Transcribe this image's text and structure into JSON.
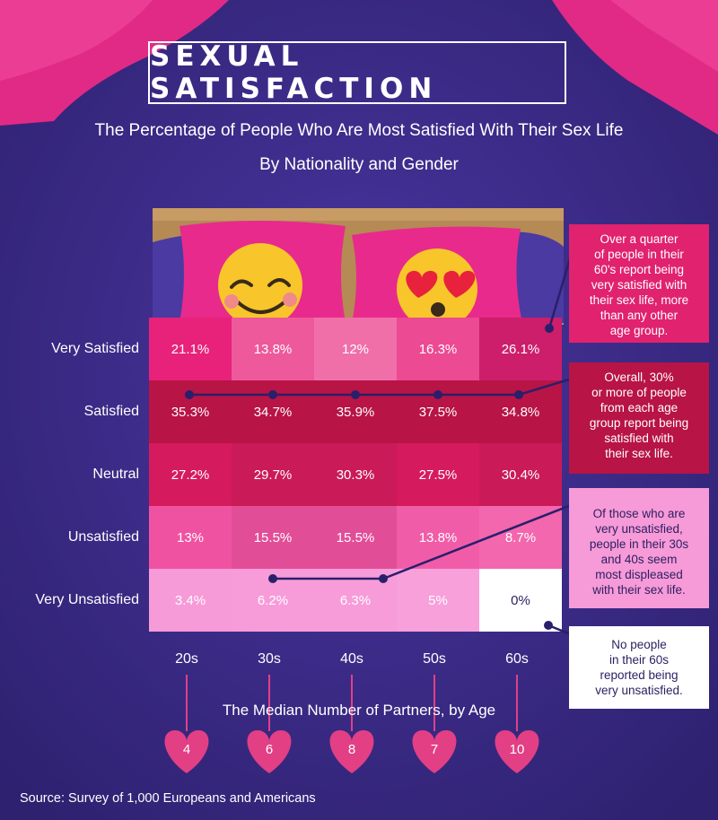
{
  "title": "SEXUAL SATISFACTION",
  "subtitle_line1": "The Percentage of People Who Are Most Satisfied With Their Sex Life",
  "subtitle_line2": "By Nationality and Gender",
  "colors": {
    "background": "#3a2a86",
    "very_satisfied": "#e8227a",
    "satisfied": "#b81446",
    "neutral": "#d51b5d",
    "unsatisfied": "#f052a2",
    "very_unsatisfied": "#f79ad8",
    "zero_cell": "#ffffff",
    "heart": "#e23f85"
  },
  "chart_data": {
    "type": "heatmap",
    "title": "The Percentage of People Who Are Most Satisfied With Their Sex Life",
    "subtitle": "By Nationality and Gender",
    "columns": [
      "20s",
      "30s",
      "40s",
      "50s",
      "60s"
    ],
    "rows": [
      {
        "label": "Very Satisfied",
        "values": [
          21.1,
          13.8,
          12,
          16.3,
          26.1
        ],
        "display": [
          "21.1%",
          "13.8%",
          "12%",
          "16.3%",
          "26.1%"
        ]
      },
      {
        "label": "Satisfied",
        "values": [
          35.3,
          34.7,
          35.9,
          37.5,
          34.8
        ],
        "display": [
          "35.3%",
          "34.7%",
          "35.9%",
          "37.5%",
          "34.8%"
        ]
      },
      {
        "label": "Neutral",
        "values": [
          27.2,
          29.7,
          30.3,
          27.5,
          30.4
        ],
        "display": [
          "27.2%",
          "29.7%",
          "30.3%",
          "27.5%",
          "30.4%"
        ]
      },
      {
        "label": "Unsatisfied",
        "values": [
          13,
          15.5,
          15.5,
          13.8,
          8.7
        ],
        "display": [
          "13%",
          "15.5%",
          "15.5%",
          "13.8%",
          "8.7%"
        ]
      },
      {
        "label": "Very Unsatisfied",
        "values": [
          3.4,
          6.2,
          6.3,
          5,
          0
        ],
        "display": [
          "3.4%",
          "6.2%",
          "6.3%",
          "5%",
          "0%"
        ]
      }
    ],
    "partners": {
      "title": "The Median Number of Partners, by Age",
      "values": [
        4,
        6,
        8,
        7,
        10
      ]
    }
  },
  "notes": [
    [
      "Over a quarter",
      "of people in their",
      "60's report being",
      "very satisfied with",
      "their sex life, more",
      "than any other",
      "age group."
    ],
    [
      "Overall, 30%",
      "or more of people",
      "from each age",
      "group report being",
      "satisfied with",
      "their sex life."
    ],
    [
      "Of those who are",
      "very unsatisfied,",
      "people in their 30s",
      "and 40s seem",
      "most displeased",
      "with their sex life."
    ],
    [
      "No people",
      "in their 60s",
      "reported being",
      "very unsatisfied."
    ]
  ],
  "source": "Source: Survey of 1,000 Europeans and Americans"
}
